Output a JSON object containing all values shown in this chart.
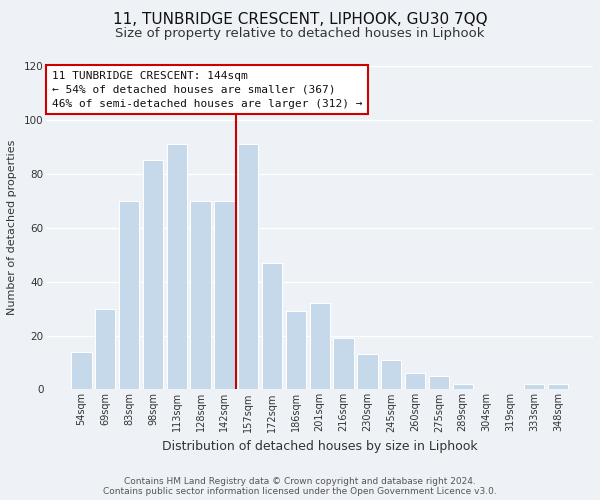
{
  "title": "11, TUNBRIDGE CRESCENT, LIPHOOK, GU30 7QQ",
  "subtitle": "Size of property relative to detached houses in Liphook",
  "xlabel": "Distribution of detached houses by size in Liphook",
  "ylabel": "Number of detached properties",
  "footer_line1": "Contains HM Land Registry data © Crown copyright and database right 2024.",
  "footer_line2": "Contains public sector information licensed under the Open Government Licence v3.0.",
  "categories": [
    "54sqm",
    "69sqm",
    "83sqm",
    "98sqm",
    "113sqm",
    "128sqm",
    "142sqm",
    "157sqm",
    "172sqm",
    "186sqm",
    "201sqm",
    "216sqm",
    "230sqm",
    "245sqm",
    "260sqm",
    "275sqm",
    "289sqm",
    "304sqm",
    "319sqm",
    "333sqm",
    "348sqm"
  ],
  "values": [
    14,
    30,
    70,
    85,
    91,
    70,
    70,
    91,
    47,
    29,
    32,
    19,
    13,
    11,
    6,
    5,
    2,
    0,
    0,
    2,
    2
  ],
  "bar_color": "#c5d9ea",
  "highlight_index": 6,
  "ylim": [
    0,
    120
  ],
  "yticks": [
    0,
    20,
    40,
    60,
    80,
    100,
    120
  ],
  "annotation_title": "11 TUNBRIDGE CRESCENT: 144sqm",
  "annotation_line2": "← 54% of detached houses are smaller (367)",
  "annotation_line3": "46% of semi-detached houses are larger (312) →",
  "annotation_box_color": "#ffffff",
  "annotation_border_color": "#cc0000",
  "vline_color": "#cc0000",
  "background_color": "#eef2f6",
  "grid_color": "#ffffff",
  "title_fontsize": 11,
  "subtitle_fontsize": 9.5,
  "xlabel_fontsize": 9,
  "ylabel_fontsize": 8,
  "tick_fontsize": 7,
  "annotation_fontsize": 8,
  "footer_fontsize": 6.5
}
